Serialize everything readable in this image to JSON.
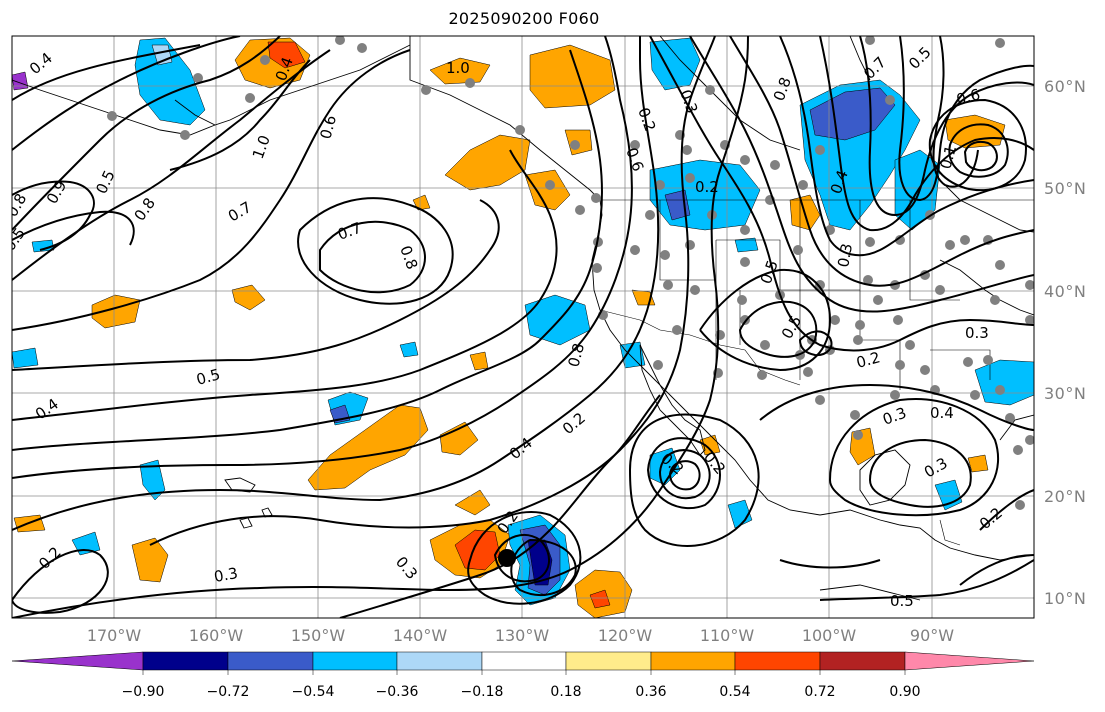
{
  "map": {
    "title": "2025090200 F060",
    "lat_labels": [
      "60°N",
      "50°N",
      "40°N",
      "30°N",
      "20°N",
      "10°N"
    ],
    "lon_labels": [
      "170°W",
      "160°W",
      "150°W",
      "140°W",
      "130°W",
      "120°W",
      "110°W",
      "100°W",
      "90°W"
    ],
    "contour_labels": [
      "0.4",
      "0.5",
      "0.8",
      "0.9",
      "0.5",
      "0.7",
      "0.7",
      "0.8",
      "1.0",
      "0.6",
      "0.4",
      "1.0",
      "0.8",
      "0.2",
      "0.3",
      "0.6",
      "0.8",
      "0.7",
      "0.5",
      "0.6",
      "0.1",
      "0.2",
      "0.4",
      "0.3",
      "0.5",
      "0.3",
      "0.2",
      "0.5",
      "0.3",
      "0.4",
      "0.5",
      "0.4",
      "0.3",
      "0.2",
      "0.3",
      "0.4",
      "0.2",
      "0.2",
      "0.2",
      "0.2",
      "0.3",
      "0.2",
      "0.5",
      "0.8"
    ],
    "storm_marker": "storm-center"
  },
  "colorbar": {
    "ticks": [
      "−0.90",
      "−0.72",
      "−0.54",
      "−0.36",
      "−0.18",
      "0.18",
      "0.36",
      "0.54",
      "0.72",
      "0.90"
    ],
    "colors": [
      "#9932cc",
      "#00008b",
      "#3a5bc9",
      "#00bfff",
      "#add8f7",
      "#ffffff",
      "#ffec8b",
      "#ffa500",
      "#ff4500",
      "#b22222",
      "#ff88aa"
    ]
  }
}
